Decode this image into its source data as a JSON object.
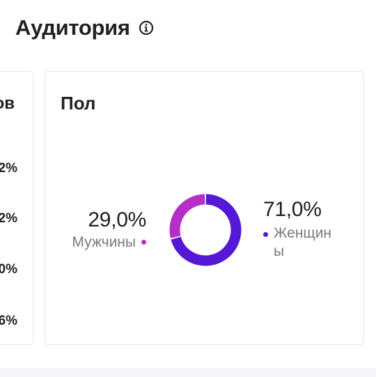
{
  "section": {
    "title": "Аудитория",
    "info_icon": "info-icon"
  },
  "left_card": {
    "title_fragment": "ов",
    "values": [
      "2%",
      "2%",
      "0%",
      "6%"
    ]
  },
  "gender_card": {
    "title": "Пол",
    "male": {
      "value": "29,0%",
      "label": "Мужчины",
      "fraction": 0.29,
      "color": "#b52ec8"
    },
    "female": {
      "value": "71,0%",
      "label": "Женщин\nы",
      "fraction": 0.71,
      "color": "#5418d6"
    }
  },
  "colors": {
    "accent_male": "#b52ec8",
    "accent_female": "#5418d6",
    "card_border": "#e6e6e6"
  }
}
